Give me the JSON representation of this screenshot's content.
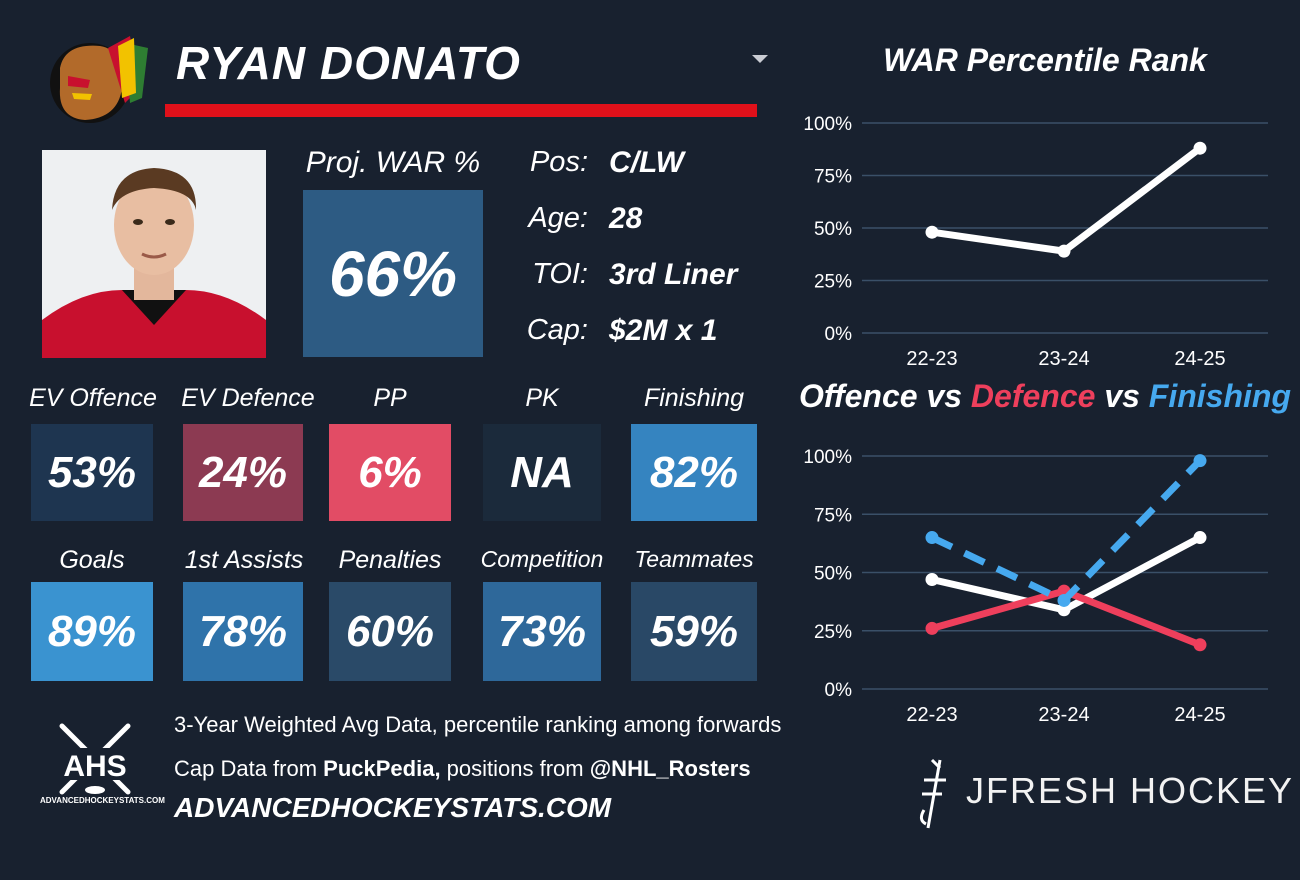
{
  "player": {
    "name": "RYAN DONATO",
    "proj_war_label": "Proj. WAR %",
    "proj_war_value": "66%",
    "info": [
      {
        "key": "Pos:",
        "value": "C/LW"
      },
      {
        "key": "Age:",
        "value": "28"
      },
      {
        "key": "TOI:",
        "value": "3rd Liner"
      },
      {
        "key": "Cap:",
        "value": "$2M x 1"
      }
    ]
  },
  "stats_row1": [
    {
      "label": "EV Offence",
      "value": "53%",
      "color": "#1e3550"
    },
    {
      "label": "EV Defence",
      "value": "24%",
      "color": "#8c3a52"
    },
    {
      "label": "PP",
      "value": "6%",
      "color": "#e24c65"
    },
    {
      "label": "PK",
      "value": "NA",
      "color": "#1b2a3b"
    },
    {
      "label": "Finishing",
      "value": "82%",
      "color": "#3584c0"
    }
  ],
  "stats_row2": [
    {
      "label": "Goals",
      "value": "89%",
      "color": "#3a93d0"
    },
    {
      "label": "1st Assists",
      "value": "78%",
      "color": "#2f73aa"
    },
    {
      "label": "Penalties",
      "value": "60%",
      "color": "#2a4a68"
    },
    {
      "label": "Competition",
      "value": "73%",
      "color": "#2e689a"
    },
    {
      "label": "Teammates",
      "value": "59%",
      "color": "#294866"
    }
  ],
  "footer": {
    "line1": "3-Year Weighted Avg Data, percentile ranking among forwards",
    "line2_prefix": "Cap Data from ",
    "line2_bold1": "PuckPedia,",
    "line2_mid": " positions from ",
    "line2_bold2": "@NHL_Rosters",
    "url": "ADVANCEDHOCKEYSTATS.COM",
    "ahs_logo_text": "AHS",
    "ahs_small_text": "ADVANCEDHOCKEYSTATS.COM",
    "brand": "JFRESH HOCKEY"
  },
  "chart_data": [
    {
      "type": "line",
      "title": "WAR Percentile Rank",
      "categories": [
        "22-23",
        "23-24",
        "24-25"
      ],
      "y_ticks": [
        "100%",
        "75%",
        "50%",
        "25%",
        "0%"
      ],
      "ylim": [
        0,
        100
      ],
      "series": [
        {
          "values": [
            48,
            39,
            88
          ],
          "color": "#ffffff",
          "dashed": false
        }
      ]
    },
    {
      "type": "line",
      "title_parts": [
        {
          "text": "Offence",
          "color": "#ffffff"
        },
        {
          "text": " vs ",
          "color": "#ffffff"
        },
        {
          "text": "Defence",
          "color": "#ee3f5c"
        },
        {
          "text": " vs ",
          "color": "#ffffff"
        },
        {
          "text": "Finishing",
          "color": "#46a9ef"
        }
      ],
      "categories": [
        "22-23",
        "23-24",
        "24-25"
      ],
      "y_ticks": [
        "100%",
        "75%",
        "50%",
        "25%",
        "0%"
      ],
      "ylim": [
        0,
        100
      ],
      "series": [
        {
          "name": "Offence",
          "values": [
            47,
            34,
            65
          ],
          "color": "#ffffff",
          "dashed": false
        },
        {
          "name": "Defence",
          "values": [
            26,
            42,
            19
          ],
          "color": "#ee3f5c",
          "dashed": false
        },
        {
          "name": "Finishing",
          "values": [
            65,
            38,
            98
          ],
          "color": "#46a9ef",
          "dashed": true
        }
      ]
    }
  ]
}
